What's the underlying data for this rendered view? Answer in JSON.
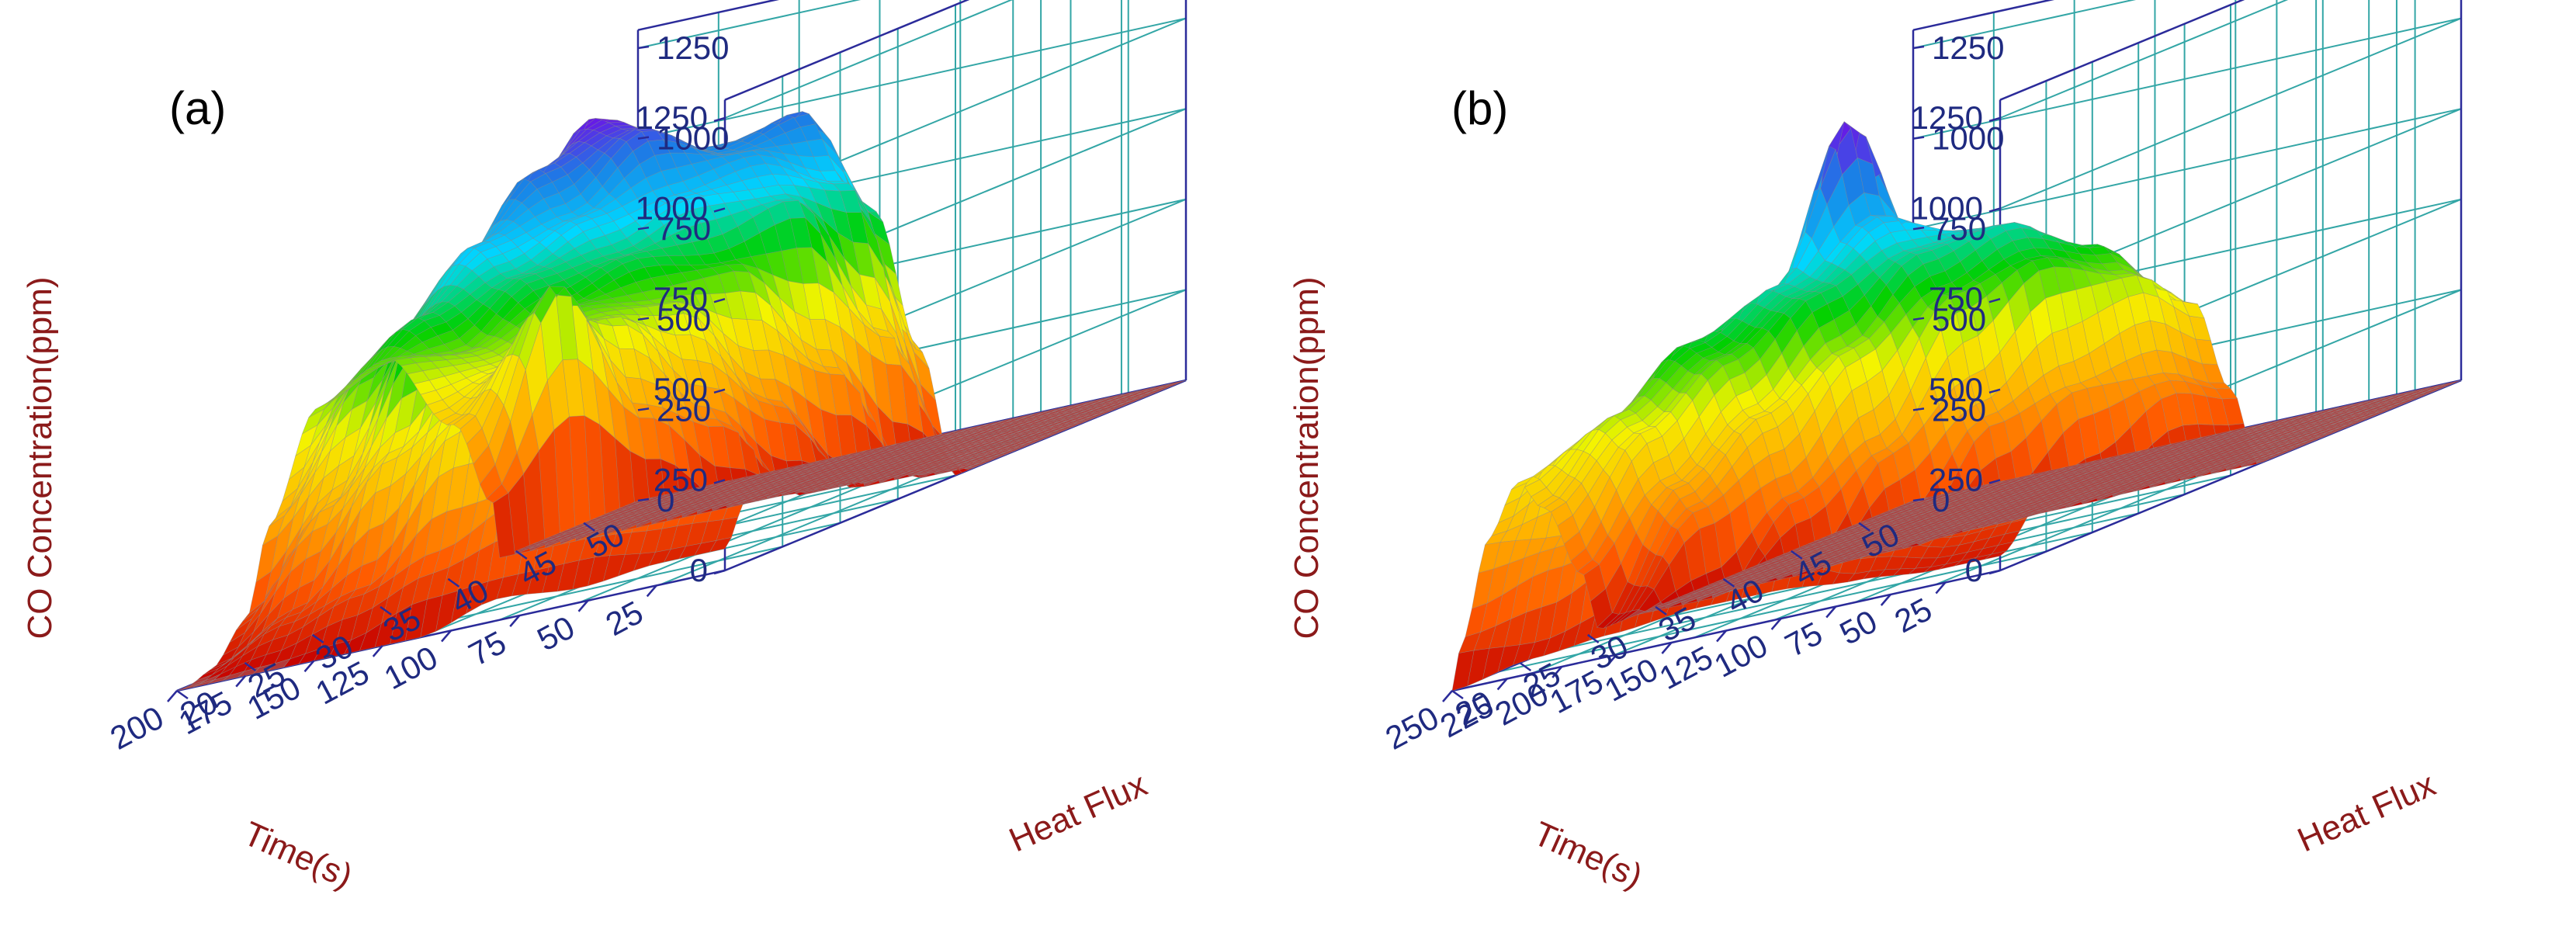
{
  "colors": {
    "axis": "#2b2b9a",
    "grid": "#33a6a6",
    "tick_text": "#1f2a80",
    "title_text": "#8b1a1a",
    "mesh": "#8a8a8a",
    "colormap": [
      "#c40000",
      "#ff5a00",
      "#ffb000",
      "#f4f400",
      "#00d000",
      "#00d8ff",
      "#1a80e6",
      "#7a00e6"
    ]
  },
  "chart_data": [
    {
      "type": "surface3d",
      "panel_label": "(a)",
      "zlabel": "CO Concentration(ppm)",
      "xlabel": "Time(s)",
      "ylabel": "Heat Flux",
      "x_ticks": [
        25,
        50,
        75,
        100,
        125,
        150,
        175,
        200
      ],
      "x_range": [
        0,
        200
      ],
      "y_ticks": [
        20,
        25,
        30,
        35,
        40,
        45,
        50
      ],
      "y_range": [
        20,
        54
      ],
      "z_ticks_left": [
        0,
        250,
        500,
        750,
        1000,
        1250
      ],
      "z_ticks_right": [
        0,
        250,
        500,
        750,
        1000,
        1250
      ],
      "z_range": [
        0,
        1300
      ],
      "series": [
        {
          "heat_flux": 20,
          "time": [
            0,
            60,
            63,
            80,
            110,
            140,
            160,
            170,
            185,
            195,
            200
          ],
          "co": [
            0,
            0,
            160,
            420,
            680,
            620,
            350,
            120,
            20,
            0,
            0
          ]
        },
        {
          "heat_flux": 25,
          "time": [
            0,
            60,
            62,
            70,
            90,
            110,
            130,
            150,
            170,
            185,
            200
          ],
          "co": [
            0,
            0,
            340,
            740,
            560,
            650,
            800,
            720,
            380,
            120,
            0
          ]
        },
        {
          "heat_flux": 30,
          "time": [
            0,
            60,
            65,
            80,
            100,
            120,
            140,
            160,
            175,
            190,
            200
          ],
          "co": [
            0,
            0,
            300,
            620,
            700,
            840,
            980,
            860,
            500,
            150,
            0
          ]
        },
        {
          "heat_flux": 35,
          "time": [
            0,
            62,
            70,
            90,
            110,
            130,
            150,
            165,
            180,
            195,
            200
          ],
          "co": [
            0,
            0,
            260,
            640,
            820,
            980,
            1160,
            1000,
            560,
            160,
            0
          ]
        },
        {
          "heat_flux": 40,
          "time": [
            0,
            70,
            80,
            100,
            120,
            140,
            160,
            175,
            190,
            200
          ],
          "co": [
            0,
            0,
            280,
            720,
            960,
            1200,
            1280,
            940,
            320,
            60
          ]
        },
        {
          "heat_flux": 45,
          "time": [
            0,
            80,
            90,
            110,
            130,
            150,
            165,
            180,
            195,
            200
          ],
          "co": [
            0,
            0,
            360,
            880,
            1060,
            1120,
            1000,
            620,
            160,
            40
          ]
        },
        {
          "heat_flux": 50,
          "time": [
            0,
            90,
            100,
            120,
            140,
            160,
            175,
            190,
            200
          ],
          "co": [
            0,
            0,
            420,
            900,
            1150,
            980,
            560,
            200,
            60
          ]
        },
        {
          "heat_flux": 54,
          "time": [
            0,
            100,
            115,
            135,
            155,
            175,
            190,
            200
          ],
          "co": [
            0,
            0,
            380,
            820,
            960,
            520,
            180,
            60
          ]
        }
      ]
    },
    {
      "type": "surface3d",
      "panel_label": "(b)",
      "zlabel": "CO Concentration(ppm)",
      "xlabel": "Time(s)",
      "ylabel": "Heat Flux",
      "x_ticks": [
        25,
        50,
        75,
        100,
        125,
        150,
        175,
        200,
        225,
        250
      ],
      "x_range": [
        0,
        250
      ],
      "y_ticks": [
        20,
        25,
        30,
        35,
        40,
        45,
        50
      ],
      "y_range": [
        20,
        54
      ],
      "z_ticks_left": [
        0,
        250,
        500,
        750,
        1000,
        1250
      ],
      "z_ticks_right": [
        0,
        250,
        500,
        750,
        1000,
        1250
      ],
      "z_range": [
        0,
        1300
      ],
      "series": [
        {
          "heat_flux": 20,
          "time": [
            0,
            170,
            180,
            200,
            215,
            230,
            245,
            250
          ],
          "co": [
            0,
            0,
            180,
            400,
            500,
            380,
            120,
            0
          ]
        },
        {
          "heat_flux": 25,
          "time": [
            0,
            150,
            160,
            175,
            190,
            205,
            220,
            235,
            250
          ],
          "co": [
            0,
            0,
            260,
            360,
            540,
            620,
            580,
            320,
            40
          ]
        },
        {
          "heat_flux": 30,
          "time": [
            0,
            140,
            150,
            170,
            190,
            210,
            225,
            240,
            250
          ],
          "co": [
            0,
            0,
            220,
            500,
            700,
            780,
            640,
            300,
            60
          ]
        },
        {
          "heat_flux": 35,
          "time": [
            0,
            130,
            145,
            165,
            185,
            205,
            220,
            235,
            250
          ],
          "co": [
            0,
            0,
            300,
            620,
            820,
            880,
            700,
            300,
            80
          ]
        },
        {
          "heat_flux": 40,
          "time": [
            0,
            120,
            135,
            155,
            175,
            195,
            210,
            225,
            240,
            250
          ],
          "co": [
            0,
            0,
            320,
            700,
            860,
            1000,
            1300,
            900,
            300,
            80
          ]
        },
        {
          "heat_flux": 45,
          "time": [
            0,
            115,
            130,
            150,
            170,
            190,
            205,
            220,
            235,
            250
          ],
          "co": [
            0,
            0,
            340,
            740,
            880,
            900,
            760,
            460,
            160,
            60
          ]
        },
        {
          "heat_flux": 50,
          "time": [
            0,
            110,
            125,
            145,
            165,
            185,
            200,
            215,
            230,
            250
          ],
          "co": [
            0,
            0,
            300,
            640,
            760,
            720,
            560,
            320,
            120,
            40
          ]
        },
        {
          "heat_flux": 54,
          "time": [
            0,
            110,
            125,
            145,
            165,
            185,
            205,
            225,
            250
          ],
          "co": [
            0,
            0,
            240,
            520,
            600,
            520,
            360,
            160,
            40
          ]
        }
      ]
    }
  ]
}
